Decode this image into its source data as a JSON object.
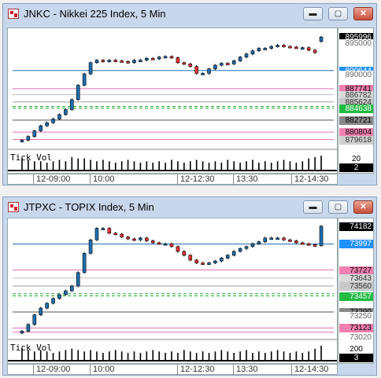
{
  "windows": [
    {
      "id": "w1",
      "title": "JNKC - Nikkei 225 Index, 5 Min",
      "controls": {
        "minimize": "▬",
        "maximize": "▢",
        "close": "✕"
      },
      "price_labels": [
        {
          "text": "895996",
          "bg": "#000000",
          "fg": "#ffffff",
          "value": 895996
        },
        {
          "text": "895000",
          "bg": "#ffffff",
          "fg": "#666666",
          "value": 895000
        },
        {
          "text": "890644",
          "bg": "#1e90ff",
          "fg": "#ffffff",
          "value": 890644
        },
        {
          "text": "890000",
          "bg": "#ffffff",
          "fg": "#666666",
          "value": 890000
        },
        {
          "text": "887741",
          "bg": "#f080b0",
          "fg": "#000000",
          "value": 887741
        },
        {
          "text": "886782",
          "bg": "#d8d8d8",
          "fg": "#333333",
          "value": 886782
        },
        {
          "text": "885624",
          "bg": "#c8c8c8",
          "fg": "#333333",
          "value": 885624
        },
        {
          "text": "884638",
          "bg": "#22bb44",
          "fg": "#ffffff",
          "value": 884638
        },
        {
          "text": "882721",
          "bg": "#888888",
          "fg": "#000000",
          "value": 882721
        },
        {
          "text": "880804",
          "bg": "#f080b0",
          "fg": "#000000",
          "value": 880804
        },
        {
          "text": "879618",
          "bg": "#d0d0d0",
          "fg": "#333333",
          "value": 879618
        }
      ],
      "volume": {
        "title": "Tick Vol",
        "scale_label": "20",
        "current_label": "2"
      },
      "x_labels": [
        "12-09:00",
        "10:00",
        "12-12:30",
        "13:30",
        "12-14:30"
      ],
      "chart_data": {
        "type": "candlestick",
        "ylim": [
          878300,
          896900
        ],
        "levels": [
          {
            "value": 890644,
            "color": "#1e6fb0",
            "dash": "none"
          },
          {
            "value": 887741,
            "color": "#e070b0",
            "dash": "none"
          },
          {
            "value": 886782,
            "color": "#c0c0c0",
            "dash": "none"
          },
          {
            "value": 885624,
            "color": "#a0a0a0",
            "dash": "none"
          },
          {
            "value": 884900,
            "color": "#22aa33",
            "dash": "4,3"
          },
          {
            "value": 884638,
            "color": "#22aa33",
            "dash": "4,3"
          },
          {
            "value": 882721,
            "color": "#555555",
            "dash": "none"
          },
          {
            "value": 880804,
            "color": "#e070b0",
            "dash": "none"
          },
          {
            "value": 879618,
            "color": "#e070b0",
            "dash": "none"
          }
        ],
        "opens": [
          879300,
          879500,
          880100,
          881000,
          881800,
          882300,
          882900,
          883600,
          884400,
          886000,
          888300,
          890100,
          891900,
          892300,
          892100,
          892300,
          892200,
          892100,
          891900,
          892300,
          892300,
          892600,
          892500,
          892800,
          892900,
          892700,
          891900,
          891700,
          891300,
          890200,
          890200,
          890900,
          891500,
          891800,
          891700,
          892200,
          892800,
          893300,
          893800,
          894200,
          894200,
          894500,
          894700,
          894500,
          894400,
          894300,
          894300,
          893900,
          895300
        ],
        "closes": [
          879500,
          880100,
          881000,
          881800,
          882300,
          882900,
          883600,
          884400,
          886000,
          888300,
          890100,
          891900,
          892300,
          892100,
          892300,
          892200,
          892100,
          891900,
          892300,
          892300,
          892600,
          892500,
          892800,
          892900,
          892700,
          891900,
          891700,
          891300,
          890200,
          890200,
          890900,
          891500,
          891800,
          891700,
          892200,
          892800,
          893300,
          893800,
          894200,
          894200,
          894500,
          894700,
          894500,
          894400,
          894300,
          894300,
          893900,
          893500,
          895996
        ]
      },
      "volumes": [
        8,
        7,
        6,
        6,
        5,
        6,
        7,
        6,
        9,
        8,
        8,
        7,
        6,
        7,
        6,
        5,
        6,
        7,
        6,
        5,
        6,
        5,
        6,
        5,
        7,
        6,
        5,
        6,
        7,
        6,
        5,
        6,
        5,
        7,
        6,
        5,
        6,
        7,
        5,
        6,
        5,
        6,
        7,
        6,
        5,
        6,
        8,
        9,
        10
      ]
    },
    {
      "id": "w2",
      "title": "JTPXC - TOPIX Index, 5 Min",
      "controls": {
        "minimize": "▬",
        "maximize": "▢",
        "close": "✕"
      },
      "price_labels": [
        {
          "text": "74182",
          "bg": "#000000",
          "fg": "#ffffff",
          "value": 74182
        },
        {
          "text": "73997",
          "bg": "#1e90ff",
          "fg": "#ffffff",
          "value": 73997
        },
        {
          "text": "73727",
          "bg": "#f080b0",
          "fg": "#000000",
          "value": 73727
        },
        {
          "text": "73643",
          "bg": "#d8d8d8",
          "fg": "#333333",
          "value": 73643
        },
        {
          "text": "73560",
          "bg": "#c8c8c8",
          "fg": "#333333",
          "value": 73560
        },
        {
          "text": "73457",
          "bg": "#22bb44",
          "fg": "#ffffff",
          "value": 73457
        },
        {
          "text": "73290",
          "bg": "#888888",
          "fg": "#000000",
          "value": 73290
        },
        {
          "text": "73250",
          "bg": "#ffffff",
          "fg": "#666666",
          "value": 73250
        },
        {
          "text": "73123",
          "bg": "#f080b0",
          "fg": "#000000",
          "value": 73123
        },
        {
          "text": "73020",
          "bg": "#ffffff",
          "fg": "#666666",
          "value": 73020
        }
      ],
      "volume": {
        "title": "Tick Vol",
        "scale_label": "200",
        "current_label": "3"
      },
      "x_labels": [
        "12-09:00",
        "10:00",
        "12-12:30",
        "13:30",
        "12-14:30"
      ],
      "chart_data": {
        "type": "candlestick",
        "ylim": [
          73020,
          74230
        ],
        "levels": [
          {
            "value": 73997,
            "color": "#1e6fb0",
            "dash": "none"
          },
          {
            "value": 73727,
            "color": "#e070b0",
            "dash": "none"
          },
          {
            "value": 73643,
            "color": "#c0c0c0",
            "dash": "none"
          },
          {
            "value": 73560,
            "color": "#a0a0a0",
            "dash": "none"
          },
          {
            "value": 73480,
            "color": "#22aa33",
            "dash": "4,3"
          },
          {
            "value": 73457,
            "color": "#22aa33",
            "dash": "4,3"
          },
          {
            "value": 73290,
            "color": "#555555",
            "dash": "none"
          },
          {
            "value": 73123,
            "color": "#e070b0",
            "dash": "none"
          },
          {
            "value": 73080,
            "color": "#e070b0",
            "dash": "none"
          }
        ],
        "opens": [
          73070,
          73090,
          73160,
          73260,
          73330,
          73380,
          73430,
          73470,
          73510,
          73560,
          73700,
          73900,
          74040,
          74160,
          74160,
          74110,
          74100,
          74070,
          74050,
          74040,
          74060,
          74030,
          74010,
          74000,
          74000,
          73970,
          73920,
          73880,
          73830,
          73800,
          73790,
          73800,
          73820,
          73850,
          73880,
          73920,
          73950,
          73970,
          74000,
          74020,
          74060,
          74060,
          74060,
          74040,
          74030,
          74010,
          74000,
          73990,
          73980
        ],
        "closes": [
          73090,
          73160,
          73260,
          73330,
          73380,
          73430,
          73470,
          73510,
          73560,
          73700,
          73900,
          74040,
          74160,
          74160,
          74110,
          74100,
          74070,
          74050,
          74040,
          74060,
          74030,
          74010,
          74000,
          74000,
          73970,
          73920,
          73880,
          73830,
          73800,
          73790,
          73800,
          73820,
          73850,
          73880,
          73920,
          73950,
          73970,
          74000,
          74020,
          74060,
          74060,
          74060,
          74040,
          74030,
          74010,
          74000,
          73990,
          73980,
          74182
        ]
      },
      "volumes": [
        8,
        7,
        6,
        7,
        6,
        5,
        6,
        7,
        8,
        7,
        6,
        7,
        6,
        5,
        6,
        7,
        6,
        5,
        6,
        5,
        6,
        7,
        6,
        5,
        6,
        5,
        7,
        6,
        5,
        6,
        5,
        6,
        7,
        6,
        5,
        6,
        7,
        5,
        6,
        5,
        6,
        7,
        6,
        5,
        6,
        5,
        6,
        8,
        10
      ]
    }
  ]
}
